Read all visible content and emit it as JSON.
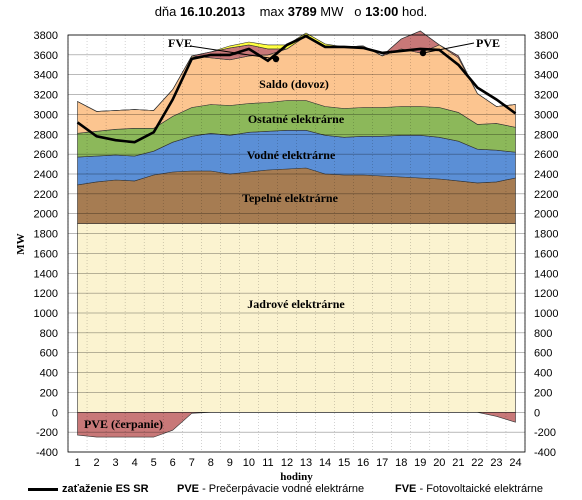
{
  "header": {
    "prefix": "dňa",
    "date": "16.10.2013",
    "max_label": "max",
    "max_value": "3789",
    "max_unit": "MW",
    "time_prefix": "o",
    "time": "13:00",
    "time_suffix": "hod."
  },
  "legend": {
    "load_label": "zaťaženie ES SR",
    "pve_abbr": "PVE",
    "pve_text": "- Prečerpávacie vodné elektrárne",
    "fve_abbr": "FVE",
    "fve_text": "- Fotovoltaické elektrárne"
  },
  "chart_data": {
    "type": "area",
    "stacked": true,
    "xlabel": "hodiny",
    "ylabel": "MW",
    "ylim": [
      -400,
      3800
    ],
    "y_ticks": [
      -400,
      -200,
      0,
      200,
      400,
      600,
      800,
      1000,
      1200,
      1400,
      1600,
      1800,
      2000,
      2200,
      2400,
      2600,
      2800,
      3000,
      3200,
      3400,
      3600,
      3800
    ],
    "x": [
      1,
      2,
      3,
      4,
      5,
      6,
      7,
      8,
      9,
      10,
      11,
      12,
      13,
      14,
      15,
      16,
      17,
      18,
      19,
      20,
      21,
      22,
      23,
      24
    ],
    "grid": true,
    "series": [
      {
        "name": "Jadrové elektrárne",
        "color": "#fbf3d0",
        "values": [
          1900,
          1900,
          1900,
          1900,
          1900,
          1900,
          1900,
          1900,
          1900,
          1900,
          1900,
          1900,
          1900,
          1900,
          1900,
          1900,
          1900,
          1900,
          1900,
          1900,
          1900,
          1900,
          1900,
          1900
        ]
      },
      {
        "name": "Tepelné elektrárne",
        "color": "#a67c52",
        "values": [
          390,
          420,
          440,
          430,
          490,
          520,
          530,
          530,
          500,
          520,
          540,
          550,
          560,
          500,
          490,
          490,
          480,
          470,
          460,
          450,
          430,
          410,
          420,
          460
        ]
      },
      {
        "name": "Vodné elektrárne",
        "color": "#5b8fd6",
        "values": [
          280,
          260,
          250,
          250,
          240,
          300,
          350,
          380,
          390,
          400,
          390,
          390,
          380,
          390,
          380,
          390,
          400,
          420,
          430,
          420,
          400,
          340,
          320,
          260
        ]
      },
      {
        "name": "Ostatné elektrárne",
        "color": "#8cb85a",
        "values": [
          240,
          250,
          260,
          280,
          230,
          260,
          290,
          290,
          300,
          290,
          290,
          300,
          300,
          290,
          290,
          290,
          290,
          290,
          290,
          300,
          290,
          250,
          270,
          250
        ]
      },
      {
        "name": "Saldo (dovoz)",
        "color": "#fcc590",
        "values": [
          320,
          200,
          190,
          190,
          180,
          270,
          520,
          470,
          460,
          480,
          480,
          520,
          650,
          610,
          620,
          620,
          520,
          580,
          540,
          630,
          550,
          310,
          170,
          230
        ]
      },
      {
        "name": "PVE",
        "color": "#c87878",
        "values": [
          0,
          0,
          0,
          0,
          0,
          0,
          0,
          60,
          120,
          110,
          60,
          0,
          0,
          0,
          0,
          0,
          0,
          100,
          220,
          0,
          20,
          0,
          0,
          0
        ]
      },
      {
        "name": "FVE",
        "color": "#ffff40",
        "values": [
          0,
          0,
          0,
          0,
          0,
          0,
          0,
          0,
          20,
          30,
          40,
          40,
          30,
          20,
          0,
          0,
          0,
          0,
          0,
          0,
          0,
          0,
          0,
          0
        ]
      }
    ],
    "pve_pumping": {
      "name": "PVE (čerpanie)",
      "color": "#c87878",
      "values": [
        -230,
        -250,
        -250,
        -250,
        -250,
        -180,
        -10,
        0,
        0,
        0,
        0,
        0,
        0,
        0,
        0,
        0,
        0,
        0,
        0,
        0,
        0,
        0,
        -40,
        -100
      ]
    },
    "load_line": {
      "name": "zaťaženie ES SR",
      "color": "#000000",
      "values": [
        2920,
        2780,
        2740,
        2720,
        2820,
        3150,
        3560,
        3600,
        3600,
        3660,
        3540,
        3700,
        3789,
        3680,
        3680,
        3670,
        3620,
        3640,
        3660,
        3650,
        3500,
        3270,
        3150,
        3010
      ]
    },
    "annotations": [
      {
        "text": "FVE"
      },
      {
        "text": "PVE"
      },
      {
        "text": "Saldo (dovoz)"
      },
      {
        "text": "Ostatné elektrárne"
      },
      {
        "text": "Vodné elektrárne"
      },
      {
        "text": "Tepelné elektrárne"
      },
      {
        "text": "Jadrové elektrárne"
      },
      {
        "text": "PVE  (čerpanie)"
      }
    ]
  }
}
